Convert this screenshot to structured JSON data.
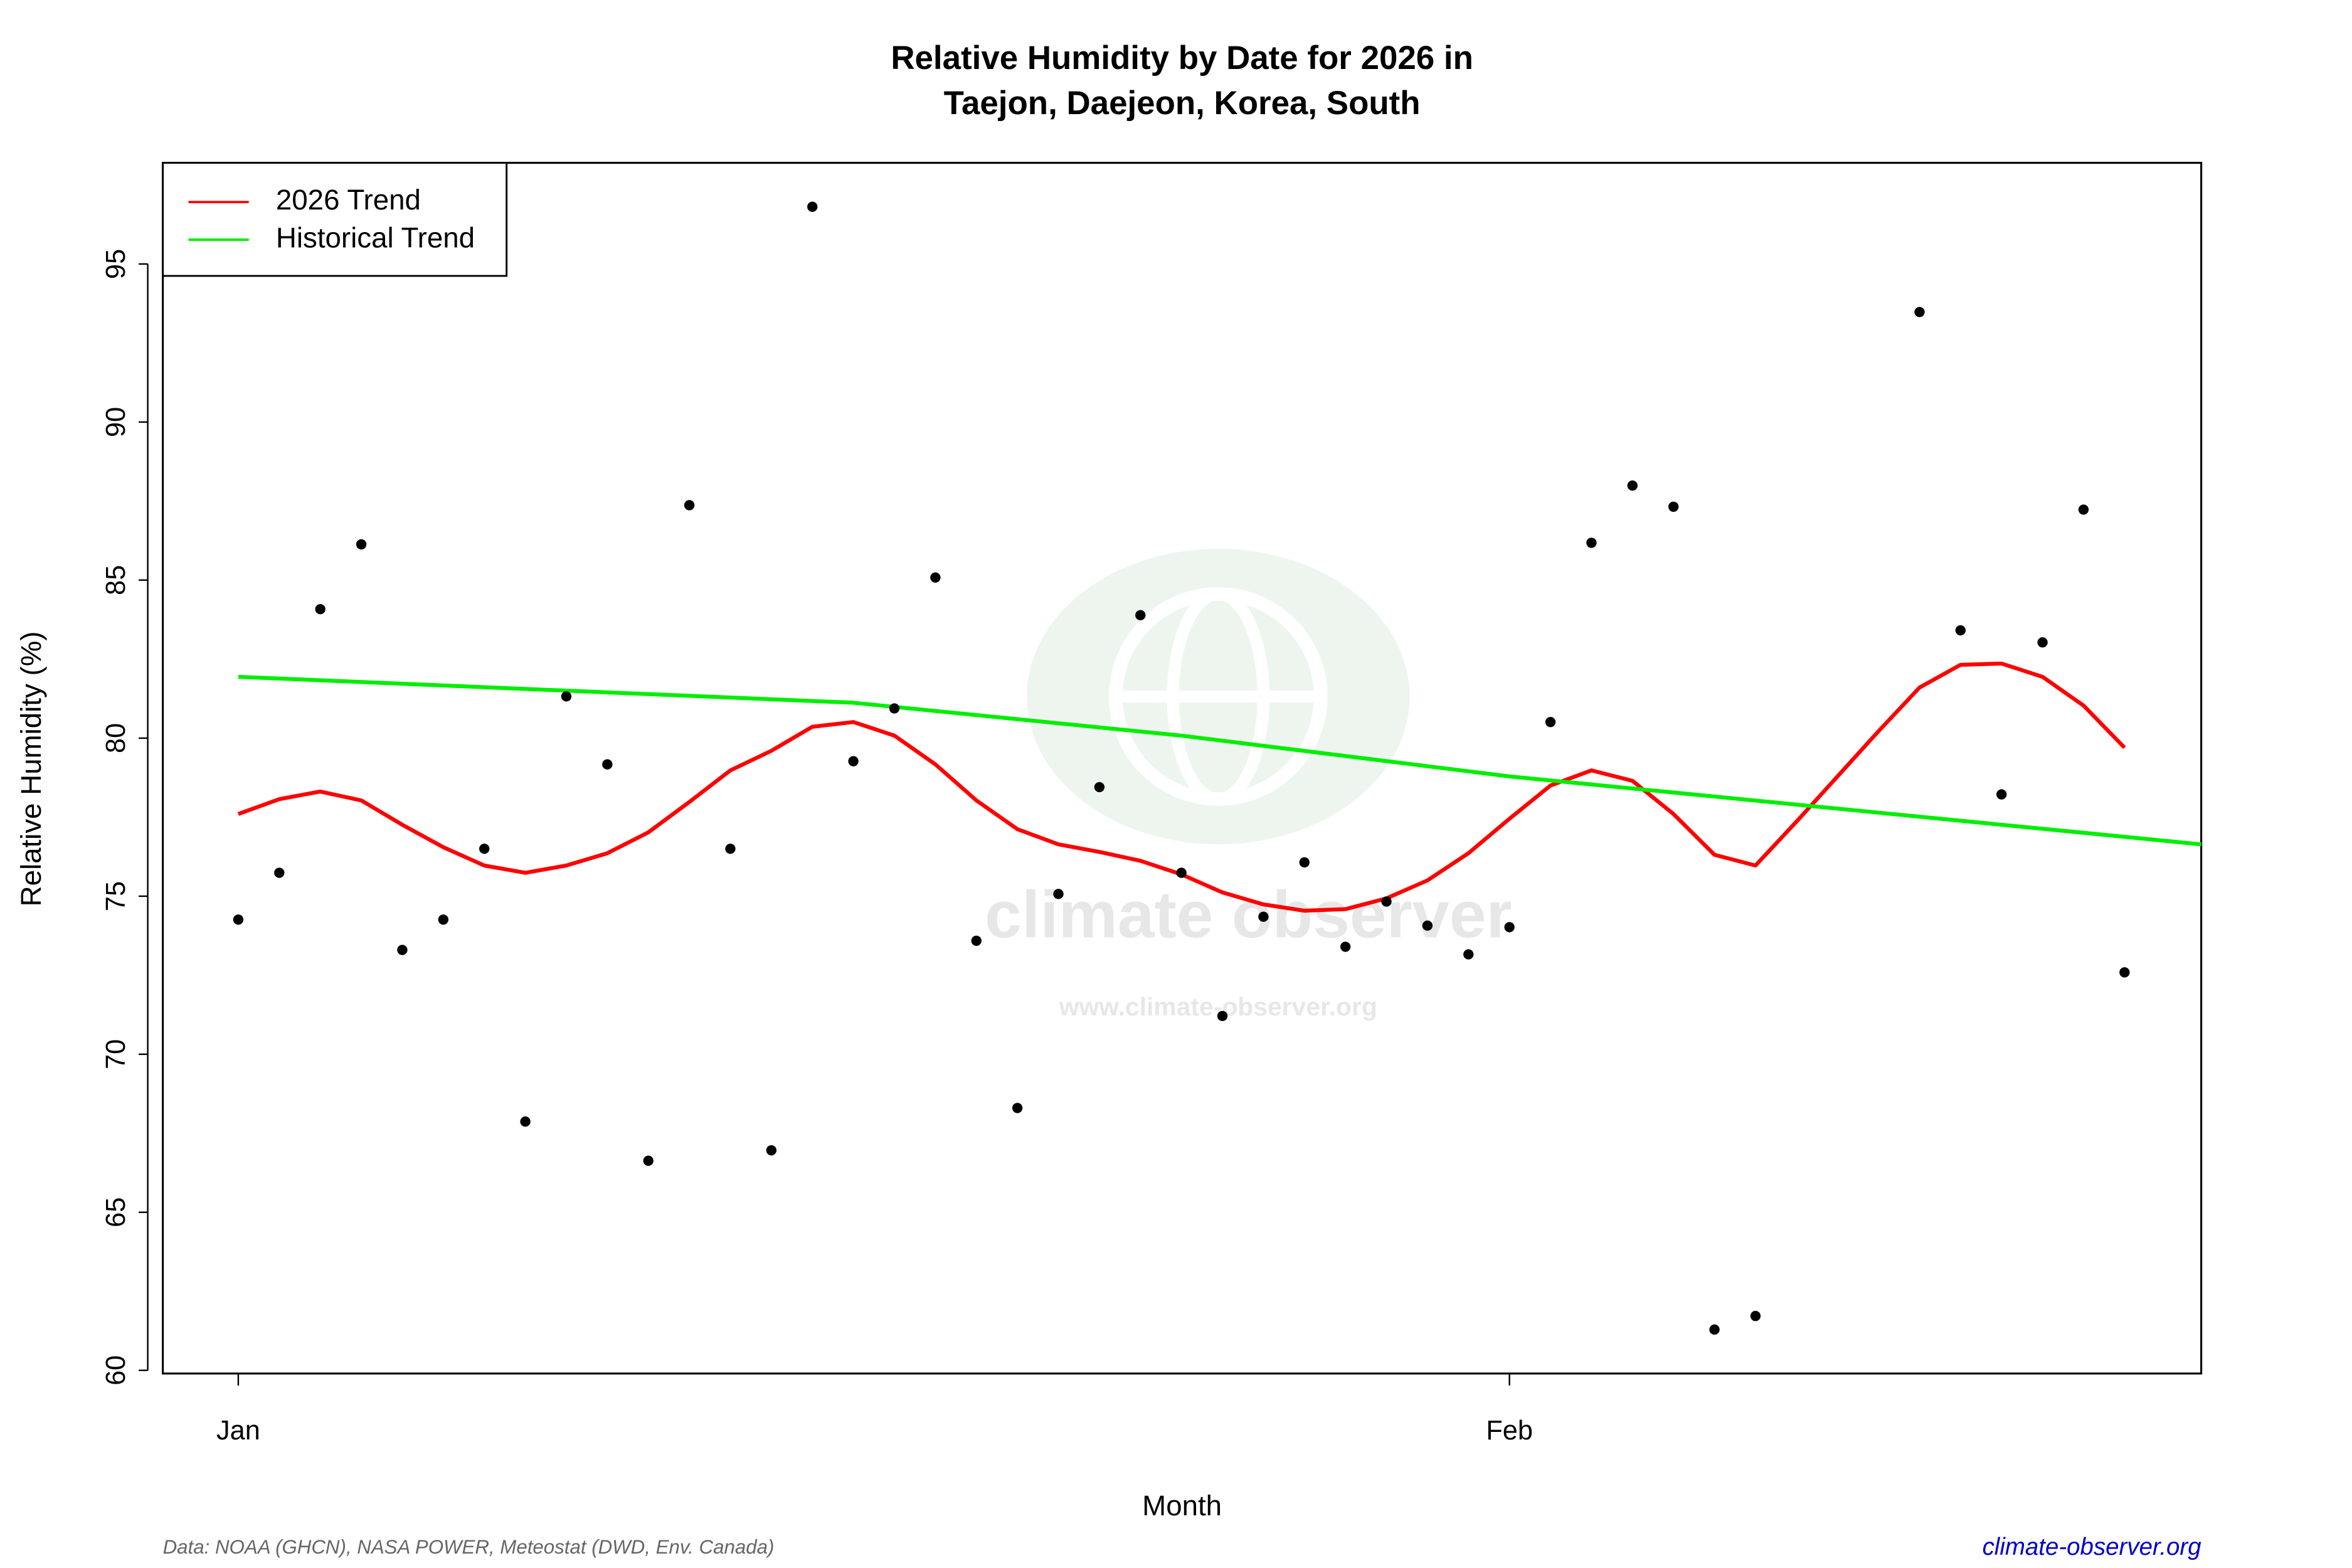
{
  "chart_data": {
    "type": "scatter",
    "title": [
      "Relative Humidity by Date for 2026 in",
      "Taejon, Daejeon, Korea, South"
    ],
    "x_label": "Month",
    "y_label": "Relative Humidity (%)",
    "source": "Data: NOAA (GHCN), NASA POWER, Meteostat (DWD, Env. Canada)",
    "website": "climate-observer.org",
    "watermark": [
      "climate observer",
      "www.climate-observer.org"
    ],
    "x": [
      1,
      2,
      3,
      4,
      5,
      6,
      7,
      8,
      9,
      10,
      11,
      12,
      13,
      14,
      15,
      16,
      17,
      18,
      19,
      20,
      21,
      22,
      23,
      24,
      25,
      26,
      27,
      28,
      29,
      30,
      31,
      32,
      33,
      34,
      35,
      36,
      37,
      38,
      39,
      40,
      41,
      42,
      43,
      44,
      45,
      46,
      47
    ],
    "values": [
      74.26,
      75.74,
      84.08,
      86.13,
      73.3,
      74.26,
      76.5,
      67.87,
      81.32,
      79.17,
      66.63,
      87.37,
      76.5,
      66.96,
      96.81,
      79.27,
      80.94,
      85.08,
      73.59,
      68.3,
      75.07,
      78.45,
      83.89,
      75.74,
      71.21,
      74.35,
      76.07,
      73.4,
      74.83,
      74.07,
      73.16,
      74.02,
      80.51,
      86.18,
      87.99,
      87.32,
      61.29,
      61.72,
      null,
      null,
      null,
      93.48,
      83.41,
      78.22,
      83.03,
      87.23,
      72.59
    ],
    "color": "#000000",
    "series": [
      {
        "name": "2026 Trend",
        "color": "#ff0000",
        "values": [
          77.6,
          78.07,
          78.31,
          78.03,
          77.26,
          76.55,
          75.97,
          75.74,
          75.97,
          76.36,
          77.02,
          77.98,
          78.98,
          79.6,
          80.36,
          80.51,
          80.08,
          79.17,
          78.03,
          77.12,
          76.64,
          76.4,
          76.12,
          75.69,
          75.12,
          74.74,
          74.54,
          74.59,
          74.93,
          75.5,
          76.36,
          77.45,
          78.5,
          78.98,
          78.65,
          77.6,
          76.31,
          75.97,
          77.36,
          78.79,
          80.22,
          81.6,
          82.32,
          82.36,
          81.94,
          81.03,
          79.7
        ]
      },
      {
        "name": "Historical Trend",
        "color": "#00ee00",
        "x": [
          1,
          16,
          24,
          32,
          48.87
        ],
        "values": [
          81.94,
          81.12,
          80.08,
          78.79,
          76.64
        ]
      }
    ],
    "xlim": [
      -0.84,
      48.87
    ],
    "xticks": [
      {
        "value": 1,
        "label": "Jan"
      },
      {
        "value": 32,
        "label": "Feb"
      }
    ],
    "ylim": [
      59.9,
      98.2
    ],
    "yticks": [
      60,
      65,
      70,
      75,
      80,
      85,
      90,
      95
    ],
    "legend": "top-left"
  }
}
